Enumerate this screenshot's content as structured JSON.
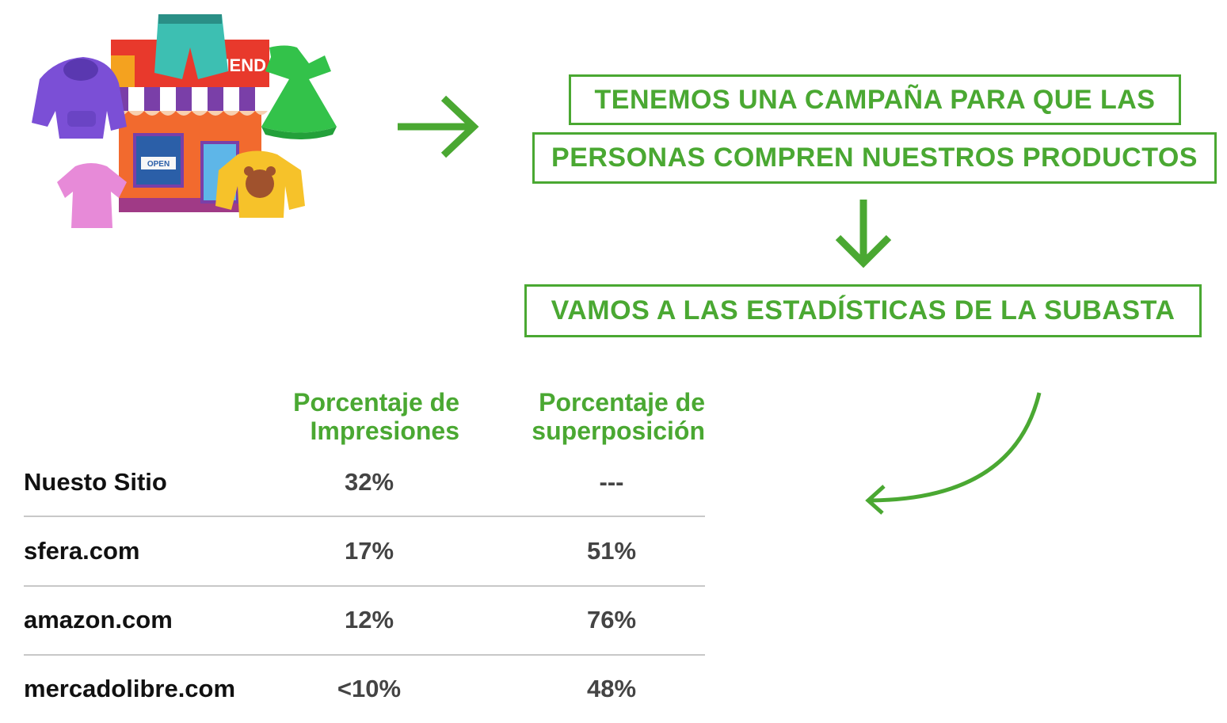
{
  "store_illustration": {
    "sign_text": "TIENDA",
    "door_sign": "OPEN"
  },
  "flow": {
    "box1_line1": "TENEMOS UNA CAMPAÑA PARA QUE LAS",
    "box1_line2": "PERSONAS COMPREN NUESTROS PRODUCTOS",
    "box2": "VAMOS A LAS ESTADÍSTICAS DE LA SUBASTA"
  },
  "table": {
    "headers": [
      {
        "line1": "Porcentaje de",
        "line2": "Impresiones"
      },
      {
        "line1": "Porcentaje de",
        "line2": "superposición"
      }
    ],
    "rows": [
      {
        "site": "Nuesto Sitio",
        "impressions": "32%",
        "overlap": "---"
      },
      {
        "site": "sfera.com",
        "impressions": "17%",
        "overlap": "51%"
      },
      {
        "site": "amazon.com",
        "impressions": "12%",
        "overlap": "76%"
      },
      {
        "site": "mercadolibre.com",
        "impressions": "<10%",
        "overlap": "48%"
      }
    ]
  },
  "colors": {
    "accent": "#4aa832",
    "text_dark": "#111111",
    "text_value": "#444444"
  }
}
